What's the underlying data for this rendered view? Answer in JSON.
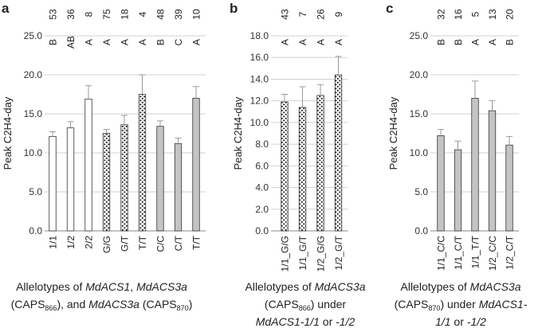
{
  "colors": {
    "open_fill": "#ffffff",
    "gray_fill": "#c4c4c4",
    "stroke": "#333333",
    "grid": "#d0d0d0",
    "dots": "#1a1a1a",
    "error_bar": "#999999"
  },
  "chart_data": [
    {
      "type": "bar",
      "panel_label": "a",
      "ylabel": "Peak C2H4-day",
      "ylim": [
        0,
        25
      ],
      "yticks": [
        "0.0",
        "5.0",
        "10.0",
        "15.0",
        "20.0",
        "25.0"
      ],
      "grid": "horizontal",
      "categories": [
        "1/1",
        "1/2",
        "2/2",
        "G/G",
        "G/T",
        "T/T",
        "C/C",
        "C/T",
        "T/T"
      ],
      "values": [
        12.1,
        13.2,
        16.9,
        12.5,
        13.6,
        17.5,
        13.4,
        11.2,
        17.0
      ],
      "errors": [
        0.6,
        0.8,
        1.7,
        0.5,
        1.2,
        2.5,
        0.7,
        0.7,
        1.5
      ],
      "fills": [
        "open",
        "open",
        "open",
        "dotted",
        "dotted",
        "dotted",
        "gray",
        "gray",
        "gray"
      ],
      "n": [
        "53",
        "36",
        "8",
        "75",
        "18",
        "4",
        "48",
        "39",
        "10"
      ],
      "groups": [
        "B",
        "AB",
        "A",
        "A",
        "A",
        "A",
        "B",
        "C",
        "A"
      ]
    },
    {
      "type": "bar",
      "panel_label": "b",
      "ylabel": "Peak C2H4-day",
      "ylim": [
        0,
        18
      ],
      "yticks": [
        "0.0",
        "2.0",
        "4.0",
        "6.0",
        "8.0",
        "10.0",
        "12.0",
        "14.0",
        "16.0",
        "18.0"
      ],
      "grid": "horizontal",
      "categories": [
        "1/1_G/G",
        "1/1_G/T",
        "1/2_G/G",
        "1/2_G/T"
      ],
      "values": [
        11.9,
        11.4,
        12.5,
        14.4
      ],
      "errors": [
        0.7,
        1.9,
        1.0,
        1.7
      ],
      "fills": [
        "dotted",
        "dotted",
        "dotted",
        "dotted"
      ],
      "n": [
        "43",
        "7",
        "26",
        "9"
      ],
      "groups": [
        "A",
        "A",
        "A",
        "A"
      ]
    },
    {
      "type": "bar",
      "panel_label": "c",
      "ylabel": "Peak C2H4-day",
      "ylim": [
        0,
        25
      ],
      "yticks": [
        "0.0",
        "5.0",
        "10.0",
        "15.0",
        "20.0",
        "25.0"
      ],
      "grid": "horizontal",
      "categories": [
        "1/1_C/C",
        "1/1_C/T",
        "1/1_T/T",
        "1/2_C/C",
        "1/2_C/T"
      ],
      "values": [
        12.2,
        10.4,
        17.0,
        15.4,
        11.0
      ],
      "errors": [
        0.8,
        1.1,
        2.2,
        1.3,
        1.1
      ],
      "fills": [
        "gray",
        "gray",
        "gray",
        "gray",
        "gray"
      ],
      "n": [
        "32",
        "16",
        "5",
        "13",
        "20"
      ],
      "groups": [
        "B",
        "B",
        "A",
        "A",
        "B"
      ]
    }
  ],
  "captions": {
    "a": {
      "p1": "Allelotypes of ",
      "i1": "MdACS1",
      "p2": ", ",
      "i2": "MdACS3a",
      "p3": "(CAPS",
      "sub1": "866",
      "p4": "), and ",
      "i3": "MdACS3a",
      "p5": " (CAPS",
      "sub2": "870",
      "p6": ")"
    },
    "b": {
      "p1": "Allelotypes of ",
      "i1": "MdACS3a",
      "p2": "(CAPS",
      "sub1": "866",
      "p3": ") under",
      "i2": "MdACS1-1/1",
      "p4": " or ",
      "i3": "-1/2"
    },
    "c": {
      "p1": "Allelotypes of ",
      "i1": "MdACS3a",
      "p2": "(CAPS",
      "sub1": "870",
      "p3": ") under ",
      "i2": "MdACS1-",
      "i3": "1/1",
      "p4": " or ",
      "i4": "-1/2"
    }
  }
}
